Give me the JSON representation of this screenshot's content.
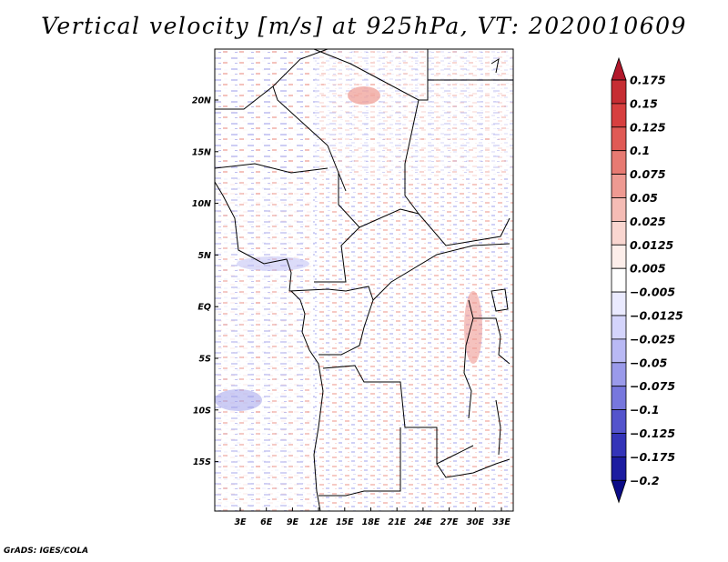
{
  "title": "Vertical velocity [m/s] at 925hPa, VT: 2020010609",
  "credit": "GrADS: IGES/COLA",
  "map": {
    "lat_ticks": [
      "20N",
      "15N",
      "10N",
      "5N",
      "EQ",
      "5S",
      "10S",
      "15S"
    ],
    "lon_ticks": [
      "3E",
      "6E",
      "9E",
      "12E",
      "15E",
      "18E",
      "21E",
      "24E",
      "27E",
      "30E",
      "33E"
    ]
  },
  "colorbar": {
    "labels": [
      "0.175",
      "0.15",
      "0.125",
      "0.1",
      "0.075",
      "0.05",
      "0.025",
      "0.0125",
      "0.005",
      "−0.005",
      "−0.0125",
      "−0.025",
      "−0.05",
      "−0.075",
      "−0.1",
      "−0.125",
      "−0.175",
      "−0.2"
    ],
    "colors": [
      "#b2182b",
      "#c62d33",
      "#d73f3f",
      "#e05a55",
      "#e77a72",
      "#ee9a92",
      "#f5bcb5",
      "#f9d6d0",
      "#fdeeea",
      "#ffffff",
      "#eaeaff",
      "#d4d4fb",
      "#b9b9f4",
      "#9a9aea",
      "#7777dd",
      "#5454cc",
      "#3434b8",
      "#1c1ca0",
      "#0c0c88"
    ]
  }
}
